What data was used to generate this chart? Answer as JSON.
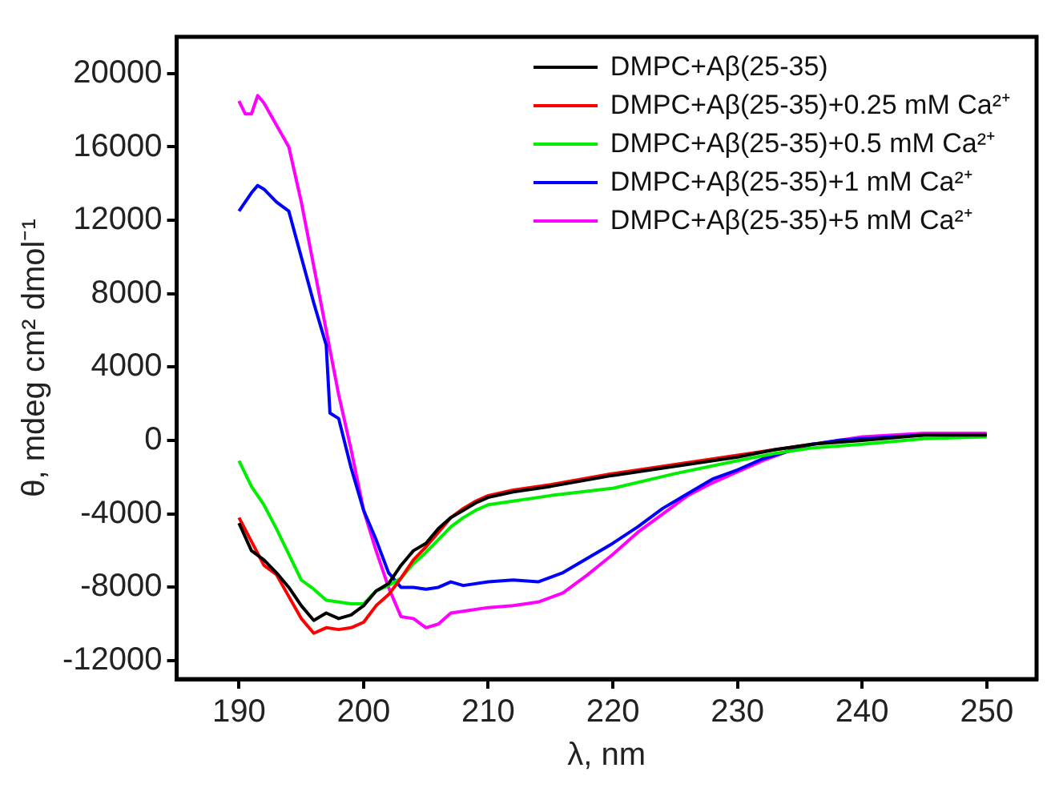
{
  "chart_data": {
    "type": "line",
    "xlabel": "λ, nm",
    "ylabel": "θ, mdeg cm² dmol⁻¹",
    "xlim": [
      185,
      254
    ],
    "xticks": [
      190,
      200,
      210,
      220,
      230,
      240,
      250
    ],
    "ylim": [
      -13000,
      22000
    ],
    "yticks": [
      -12000,
      -8000,
      -4000,
      0,
      4000,
      8000,
      12000,
      16000,
      20000
    ],
    "grid": false,
    "legend": "top right",
    "marker": "none",
    "line_style": "solid",
    "series": [
      {
        "name": "DMPC+Aβ(25-35)",
        "color": "#000000",
        "x": [
          190,
          191,
          192,
          193,
          194,
          195,
          196,
          197,
          198,
          199,
          200,
          201,
          202,
          203,
          204,
          205,
          206,
          207,
          208,
          209,
          210,
          212,
          215,
          220,
          225,
          230,
          233,
          236,
          240,
          245,
          250
        ],
        "values": [
          -4500,
          -6000,
          -6500,
          -7200,
          -8000,
          -9000,
          -9800,
          -9400,
          -9700,
          -9500,
          -9000,
          -8200,
          -7800,
          -6800,
          -6000,
          -5600,
          -4800,
          -4200,
          -3800,
          -3400,
          -3100,
          -2800,
          -2500,
          -1900,
          -1400,
          -900,
          -500,
          -200,
          0,
          300,
          300
        ]
      },
      {
        "name": "DMPC+Aβ(25-35)+0.25 mM Ca²⁺",
        "color": "#ff0000",
        "x": [
          190,
          191,
          192,
          193,
          194,
          195,
          196,
          197,
          198,
          199,
          200,
          201,
          202,
          203,
          204,
          205,
          206,
          207,
          208,
          209,
          210,
          212,
          215,
          220,
          225,
          230,
          233,
          236
        ],
        "values": [
          -4200,
          -5500,
          -6800,
          -7300,
          -8500,
          -9700,
          -10500,
          -10200,
          -10300,
          -10200,
          -9900,
          -9000,
          -8400,
          -7500,
          -6500,
          -5800,
          -5000,
          -4200,
          -3700,
          -3300,
          -3000,
          -2700,
          -2400,
          -1800,
          -1300,
          -800,
          -500,
          -200
        ]
      },
      {
        "name": "DMPC+Aβ(25-35)+0.5 mM Ca²⁺",
        "color": "#00ee00",
        "x": [
          190,
          191,
          192,
          193,
          194,
          195,
          196,
          197,
          198,
          199,
          200,
          201,
          202,
          203,
          204,
          205,
          206,
          207,
          208,
          209,
          210,
          212,
          215,
          220,
          225,
          230,
          233,
          236,
          240,
          245,
          250
        ],
        "values": [
          -1100,
          -2500,
          -3500,
          -4800,
          -6200,
          -7600,
          -8100,
          -8700,
          -8800,
          -8900,
          -8900,
          -8200,
          -7900,
          -7500,
          -6700,
          -6100,
          -5400,
          -4700,
          -4200,
          -3800,
          -3500,
          -3300,
          -3000,
          -2600,
          -1800,
          -1100,
          -700,
          -400,
          -200,
          100,
          200
        ]
      },
      {
        "name": "DMPC+Aβ(25-35)+1 mM Ca²⁺",
        "color": "#0000ff",
        "x": [
          190,
          191,
          191.5,
          192,
          193,
          194,
          195,
          196,
          197,
          197.3,
          198,
          199,
          200,
          201,
          202,
          203,
          204,
          205,
          206,
          207,
          208,
          210,
          212,
          214,
          216,
          218,
          220,
          222,
          224,
          226,
          228,
          230,
          232,
          234,
          236,
          238,
          240,
          245,
          250
        ],
        "values": [
          12500,
          13500,
          13900,
          13700,
          13000,
          12500,
          10000,
          7500,
          5200,
          1500,
          1200,
          -1500,
          -3800,
          -5400,
          -7200,
          -8000,
          -8000,
          -8100,
          -8000,
          -7700,
          -7900,
          -7700,
          -7600,
          -7700,
          -7200,
          -6400,
          -5600,
          -4700,
          -3700,
          -2900,
          -2100,
          -1600,
          -1000,
          -600,
          -200,
          0,
          100,
          300,
          300
        ]
      },
      {
        "name": "DMPC+Aβ(25-35)+5 mM Ca²⁺",
        "color": "#ff00ff",
        "x": [
          190,
          190.5,
          191,
          191.5,
          192,
          193,
          194,
          195,
          196,
          197,
          198,
          199,
          200,
          201,
          202,
          203,
          204,
          205,
          206,
          207,
          208,
          210,
          212,
          214,
          216,
          218,
          220,
          222,
          224,
          226,
          228,
          230,
          232,
          234,
          236,
          238,
          240,
          245,
          250
        ],
        "values": [
          18500,
          17800,
          17800,
          18800,
          18400,
          17200,
          16000,
          13000,
          9500,
          6000,
          2500,
          -500,
          -3800,
          -6000,
          -8000,
          -9600,
          -9700,
          -10200,
          -10000,
          -9400,
          -9300,
          -9100,
          -9000,
          -8800,
          -8300,
          -7300,
          -6200,
          -5000,
          -4000,
          -3000,
          -2300,
          -1700,
          -1100,
          -600,
          -200,
          0,
          200,
          400,
          400
        ]
      }
    ]
  }
}
